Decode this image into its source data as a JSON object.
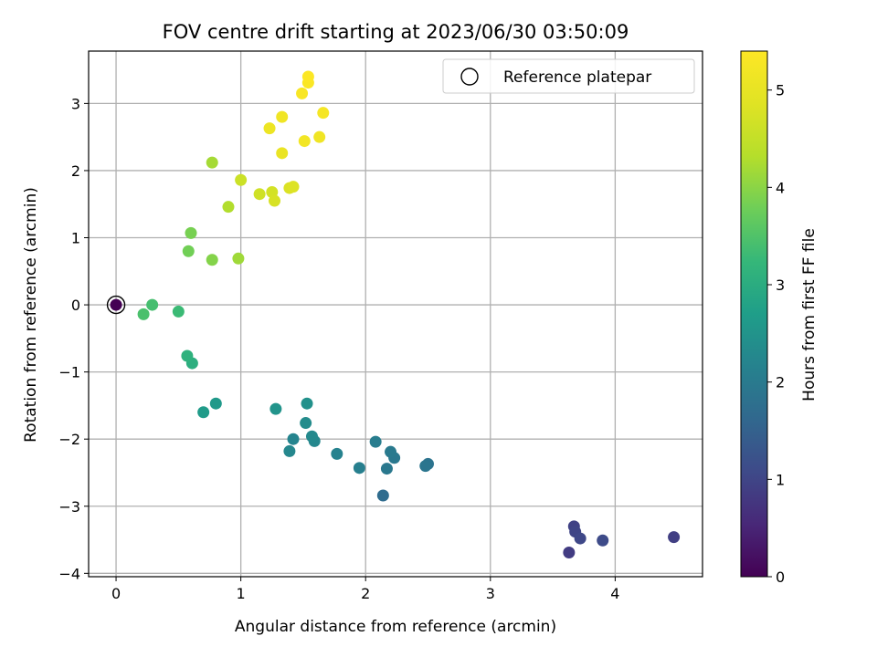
{
  "chart_data": {
    "type": "scatter",
    "title": "FOV centre drift starting at 2023/06/30 03:50:09",
    "xlabel": "Angular distance from reference (arcmin)",
    "ylabel": "Rotation from reference (arcmin)",
    "xlim": [
      -0.22,
      4.7
    ],
    "ylim": [
      -4.05,
      3.78
    ],
    "x_ticks": [
      "0",
      "1",
      "2",
      "3",
      "4"
    ],
    "y_ticks": [
      "3",
      "2",
      "1",
      "0",
      "−1",
      "−2",
      "−3",
      "−4"
    ],
    "grid": true,
    "legend": {
      "position": "top-right",
      "entries": [
        "Reference platepar"
      ]
    },
    "reference_point": {
      "x": 0,
      "y": 0,
      "hours": 0
    },
    "colorbar": {
      "label": "Hours from first FF file",
      "range": [
        0,
        5.4
      ],
      "ticks": [
        "0",
        "1",
        "2",
        "3",
        "4",
        "5"
      ],
      "colormap": "viridis"
    },
    "points": [
      {
        "x": 4.47,
        "y": -3.46,
        "hours": 0.9
      },
      {
        "x": 3.63,
        "y": -3.69,
        "hours": 0.85
      },
      {
        "x": 3.67,
        "y": -3.3,
        "hours": 0.95
      },
      {
        "x": 3.68,
        "y": -3.38,
        "hours": 1.0
      },
      {
        "x": 3.72,
        "y": -3.48,
        "hours": 1.05
      },
      {
        "x": 3.9,
        "y": -3.51,
        "hours": 1.1
      },
      {
        "x": 2.14,
        "y": -2.84,
        "hours": 1.7
      },
      {
        "x": 2.5,
        "y": -2.37,
        "hours": 1.85
      },
      {
        "x": 2.48,
        "y": -2.4,
        "hours": 1.9
      },
      {
        "x": 2.23,
        "y": -2.28,
        "hours": 1.95
      },
      {
        "x": 2.2,
        "y": -2.19,
        "hours": 2.0
      },
      {
        "x": 2.17,
        "y": -2.44,
        "hours": 1.95
      },
      {
        "x": 2.08,
        "y": -2.04,
        "hours": 2.05
      },
      {
        "x": 1.95,
        "y": -2.43,
        "hours": 2.1
      },
      {
        "x": 1.77,
        "y": -2.22,
        "hours": 2.15
      },
      {
        "x": 1.59,
        "y": -2.03,
        "hours": 2.25
      },
      {
        "x": 1.57,
        "y": -1.96,
        "hours": 2.3
      },
      {
        "x": 1.42,
        "y": -2.0,
        "hours": 2.2
      },
      {
        "x": 1.39,
        "y": -2.18,
        "hours": 2.25
      },
      {
        "x": 1.52,
        "y": -1.76,
        "hours": 2.35
      },
      {
        "x": 1.53,
        "y": -1.47,
        "hours": 2.45
      },
      {
        "x": 1.28,
        "y": -1.55,
        "hours": 2.5
      },
      {
        "x": 0.8,
        "y": -1.47,
        "hours": 2.6
      },
      {
        "x": 0.7,
        "y": -1.6,
        "hours": 2.65
      },
      {
        "x": 0.61,
        "y": -0.87,
        "hours": 3.05
      },
      {
        "x": 0.57,
        "y": -0.76,
        "hours": 3.1
      },
      {
        "x": 0.5,
        "y": -0.1,
        "hours": 3.3
      },
      {
        "x": 0.29,
        "y": 0.0,
        "hours": 3.4
      },
      {
        "x": 0.22,
        "y": -0.14,
        "hours": 3.45
      },
      {
        "x": 0.58,
        "y": 0.8,
        "hours": 3.8
      },
      {
        "x": 0.6,
        "y": 1.07,
        "hours": 3.85
      },
      {
        "x": 0.77,
        "y": 0.67,
        "hours": 3.95
      },
      {
        "x": 0.98,
        "y": 0.69,
        "hours": 4.15
      },
      {
        "x": 0.9,
        "y": 1.46,
        "hours": 4.3
      },
      {
        "x": 0.77,
        "y": 2.12,
        "hours": 4.2
      },
      {
        "x": 1.0,
        "y": 1.86,
        "hours": 4.6
      },
      {
        "x": 1.15,
        "y": 1.65,
        "hours": 4.65
      },
      {
        "x": 1.25,
        "y": 1.68,
        "hours": 4.7
      },
      {
        "x": 1.27,
        "y": 1.55,
        "hours": 4.75
      },
      {
        "x": 1.39,
        "y": 1.74,
        "hours": 4.8
      },
      {
        "x": 1.42,
        "y": 1.76,
        "hours": 4.82
      },
      {
        "x": 1.23,
        "y": 2.63,
        "hours": 5.1
      },
      {
        "x": 1.33,
        "y": 2.8,
        "hours": 5.15
      },
      {
        "x": 1.33,
        "y": 2.26,
        "hours": 5.05
      },
      {
        "x": 1.51,
        "y": 2.44,
        "hours": 5.2
      },
      {
        "x": 1.63,
        "y": 2.5,
        "hours": 5.15
      },
      {
        "x": 1.66,
        "y": 2.86,
        "hours": 5.25
      },
      {
        "x": 1.49,
        "y": 3.15,
        "hours": 5.3
      },
      {
        "x": 1.54,
        "y": 3.31,
        "hours": 5.35
      },
      {
        "x": 1.54,
        "y": 3.4,
        "hours": 5.38
      }
    ]
  }
}
